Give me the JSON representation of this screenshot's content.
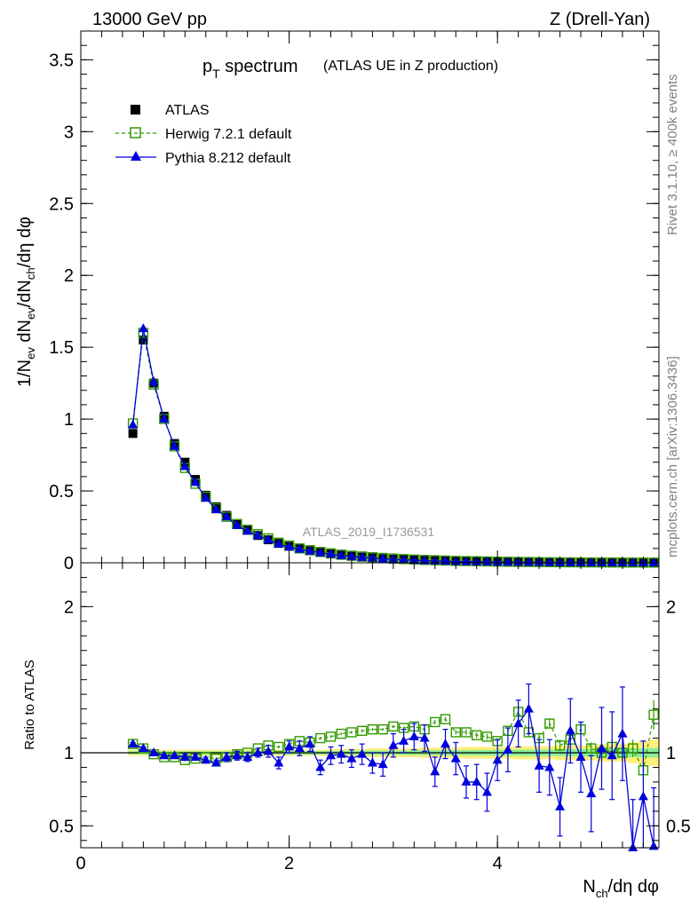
{
  "header": {
    "left": "13000 GeV pp",
    "right": "Z (Drell-Yan)"
  },
  "side_labels": {
    "rivet": "Rivet 3.1.10, ≥ 400k events",
    "mcplots": "mcplots.cern.ch [arXiv:1306.3436]"
  },
  "colors": {
    "atlas": "#000000",
    "herwig": "#339900",
    "pythia": "#0000dd",
    "band_yellow": "#ffee77",
    "band_green": "#88ee99"
  },
  "chart_data": [
    {
      "type": "scatter",
      "title_main": "p",
      "title_sub": "T",
      "title_rest": " spectrum",
      "title_small": "(ATLAS UE in Z production)",
      "ylabel": "1/N_ev dN_ev/dN_ch/dη dφ",
      "ylabel_parts": [
        "1/N",
        "ev",
        " dN",
        "ev",
        "/dN",
        "ch",
        "/dη dφ"
      ],
      "xlim": [
        0,
        5.55
      ],
      "ylim": [
        0,
        3.7
      ],
      "xticks": [
        "0",
        "2",
        "4"
      ],
      "xtick_values": [
        0,
        2,
        4
      ],
      "yticks": [
        "0",
        "0.5",
        "1",
        "1.5",
        "2",
        "2.5",
        "3",
        "3.5"
      ],
      "ytick_values": [
        0,
        0.5,
        1,
        1.5,
        2,
        2.5,
        3,
        3.5
      ],
      "watermark": "ATLAS_2019_I1736531",
      "legend": [
        "ATLAS",
        "Herwig 7.2.1 default",
        "Pythia 8.212 default"
      ],
      "x": [
        0.5,
        0.6,
        0.7,
        0.8,
        0.9,
        1.0,
        1.1,
        1.2,
        1.3,
        1.4,
        1.5,
        1.6,
        1.7,
        1.8,
        1.9,
        2.0,
        2.1,
        2.2,
        2.3,
        2.4,
        2.5,
        2.6,
        2.7,
        2.8,
        2.9,
        3.0,
        3.1,
        3.2,
        3.3,
        3.4,
        3.5,
        3.6,
        3.7,
        3.8,
        3.9,
        4.0,
        4.1,
        4.2,
        4.3,
        4.4,
        4.5,
        4.6,
        4.7,
        4.8,
        4.9,
        5.0,
        5.1,
        5.2,
        5.3,
        5.4,
        5.5
      ],
      "series": [
        {
          "name": "ATLAS",
          "values": [
            0.9,
            1.55,
            1.25,
            1.02,
            0.83,
            0.7,
            0.58,
            0.47,
            0.39,
            0.33,
            0.27,
            0.23,
            0.19,
            0.16,
            0.135,
            0.115,
            0.097,
            0.083,
            0.071,
            0.061,
            0.052,
            0.045,
            0.039,
            0.034,
            0.029,
            0.025,
            0.022,
            0.019,
            0.017,
            0.015,
            0.013,
            0.011,
            0.01,
            0.009,
            0.008,
            0.007,
            0.006,
            0.005,
            0.0045,
            0.004,
            0.0035,
            0.003,
            0.0027,
            0.0024,
            0.0021,
            0.0019,
            0.0017,
            0.0015,
            0.0013,
            0.0012,
            0.0011
          ]
        },
        {
          "name": "Herwig 7.2.1 default",
          "values": [
            0.97,
            1.6,
            1.24,
            1.0,
            0.81,
            0.66,
            0.55,
            0.46,
            0.38,
            0.32,
            0.27,
            0.23,
            0.2,
            0.17,
            0.14,
            0.12,
            0.1,
            0.088,
            0.076,
            0.066,
            0.057,
            0.05,
            0.044,
            0.039,
            0.034,
            0.03,
            0.026,
            0.023,
            0.02,
            0.018,
            0.016,
            0.013,
            0.012,
            0.011,
            0.0095,
            0.0083,
            0.0072,
            0.0063,
            0.0055,
            0.0048,
            0.0042,
            0.0036,
            0.0031,
            0.0027,
            0.0023,
            0.002,
            0.0018,
            0.0016,
            0.0014,
            0.0012,
            0.0011
          ]
        },
        {
          "name": "Pythia 8.212 default",
          "values": [
            0.96,
            1.63,
            1.26,
            1.0,
            0.81,
            0.67,
            0.56,
            0.45,
            0.37,
            0.32,
            0.26,
            0.22,
            0.19,
            0.16,
            0.13,
            0.11,
            0.095,
            0.082,
            0.07,
            0.06,
            0.051,
            0.044,
            0.038,
            0.033,
            0.028,
            0.024,
            0.021,
            0.018,
            0.015,
            0.013,
            0.011,
            0.009,
            0.008,
            0.007,
            0.006,
            0.005,
            0.0045,
            0.004,
            0.0035,
            0.003,
            0.0025,
            0.0022,
            0.002,
            0.0018,
            0.0016,
            0.0014,
            0.0012,
            0.0011,
            0.001,
            0.0009,
            0.0008
          ]
        }
      ]
    },
    {
      "type": "scatter",
      "ylabel": "Ratio to ATLAS",
      "xlabel_parts": [
        "N",
        "ch",
        "/dη dφ"
      ],
      "xlim": [
        0,
        5.55
      ],
      "ylim": [
        0.35,
        2.3
      ],
      "xticks": [
        "0",
        "2",
        "4"
      ],
      "xtick_values": [
        0,
        2,
        4
      ],
      "yticks": [
        "0.5",
        "1",
        "2"
      ],
      "ytick_values": [
        0.5,
        1,
        2
      ],
      "x": [
        0.5,
        0.6,
        0.7,
        0.8,
        0.9,
        1.0,
        1.1,
        1.2,
        1.3,
        1.4,
        1.5,
        1.6,
        1.7,
        1.8,
        1.9,
        2.0,
        2.1,
        2.2,
        2.3,
        2.4,
        2.5,
        2.6,
        2.7,
        2.8,
        2.9,
        3.0,
        3.1,
        3.2,
        3.3,
        3.4,
        3.5,
        3.6,
        3.7,
        3.8,
        3.9,
        4.0,
        4.1,
        4.2,
        4.3,
        4.4,
        4.5,
        4.6,
        4.7,
        4.8,
        4.9,
        5.0,
        5.1,
        5.2,
        5.3,
        5.4,
        5.5
      ],
      "band_yellow_halfwidth": [
        0.02,
        0.02,
        0.02,
        0.02,
        0.02,
        0.02,
        0.02,
        0.02,
        0.02,
        0.02,
        0.02,
        0.02,
        0.02,
        0.02,
        0.02,
        0.02,
        0.02,
        0.02,
        0.02,
        0.025,
        0.025,
        0.025,
        0.025,
        0.03,
        0.03,
        0.03,
        0.03,
        0.03,
        0.035,
        0.035,
        0.035,
        0.035,
        0.04,
        0.04,
        0.04,
        0.04,
        0.04,
        0.045,
        0.045,
        0.045,
        0.045,
        0.05,
        0.05,
        0.05,
        0.05,
        0.06,
        0.06,
        0.06,
        0.07,
        0.08,
        0.09
      ],
      "band_green_halfwidth": [
        0.01,
        0.01,
        0.01,
        0.01,
        0.01,
        0.01,
        0.01,
        0.01,
        0.01,
        0.01,
        0.01,
        0.01,
        0.01,
        0.01,
        0.01,
        0.012,
        0.012,
        0.012,
        0.012,
        0.013,
        0.013,
        0.013,
        0.014,
        0.014,
        0.015,
        0.015,
        0.015,
        0.016,
        0.016,
        0.017,
        0.017,
        0.018,
        0.018,
        0.019,
        0.019,
        0.02,
        0.02,
        0.021,
        0.021,
        0.022,
        0.022,
        0.023,
        0.024,
        0.025,
        0.026,
        0.027,
        0.028,
        0.029,
        0.03,
        0.031,
        0.032
      ],
      "series": [
        {
          "name": "Herwig 7.2.1 default",
          "values": [
            1.06,
            1.03,
            0.99,
            0.97,
            0.97,
            0.95,
            0.96,
            0.97,
            0.96,
            0.97,
            0.99,
            1.0,
            1.03,
            1.05,
            1.04,
            1.06,
            1.08,
            1.07,
            1.1,
            1.11,
            1.13,
            1.14,
            1.15,
            1.16,
            1.16,
            1.18,
            1.17,
            1.18,
            1.16,
            1.21,
            1.23,
            1.14,
            1.14,
            1.12,
            1.11,
            1.08,
            1.15,
            1.28,
            1.14,
            1.1,
            1.2,
            1.05,
            1.09,
            1.16,
            1.03,
            1.0,
            1.04,
            1.0,
            1.03,
            0.88,
            1.26
          ],
          "errors": [
            0.01,
            0.01,
            0.01,
            0.01,
            0.01,
            0.01,
            0.01,
            0.01,
            0.01,
            0.01,
            0.01,
            0.01,
            0.01,
            0.01,
            0.01,
            0.01,
            0.01,
            0.01,
            0.01,
            0.01,
            0.01,
            0.01,
            0.01,
            0.01,
            0.01,
            0.01,
            0.01,
            0.01,
            0.015,
            0.015,
            0.015,
            0.015,
            0.02,
            0.02,
            0.02,
            0.02,
            0.02,
            0.03,
            0.03,
            0.03,
            0.03,
            0.04,
            0.04,
            0.04,
            0.04,
            0.05,
            0.05,
            0.05,
            0.06,
            0.08,
            0.1
          ]
        },
        {
          "name": "Pythia 8.212 default",
          "values": [
            1.06,
            1.03,
            1.0,
            0.98,
            0.98,
            0.97,
            0.97,
            0.95,
            0.93,
            0.97,
            0.98,
            0.97,
            1.0,
            1.01,
            0.93,
            1.04,
            1.03,
            1.06,
            0.9,
            0.98,
            0.99,
            0.96,
            0.99,
            0.93,
            0.92,
            1.05,
            1.08,
            1.11,
            1.1,
            0.87,
            1.06,
            0.96,
            0.8,
            0.8,
            0.73,
            0.95,
            1.02,
            1.2,
            1.3,
            0.91,
            0.9,
            0.63,
            1.15,
            0.97,
            0.72,
            1.03,
            0.98,
            1.13,
            0.33,
            0.7,
            0.36
          ],
          "errors": [
            0.01,
            0.01,
            0.01,
            0.01,
            0.01,
            0.02,
            0.02,
            0.02,
            0.02,
            0.03,
            0.03,
            0.03,
            0.03,
            0.04,
            0.04,
            0.04,
            0.05,
            0.05,
            0.05,
            0.06,
            0.06,
            0.06,
            0.07,
            0.07,
            0.08,
            0.08,
            0.08,
            0.09,
            0.09,
            0.1,
            0.1,
            0.11,
            0.11,
            0.12,
            0.13,
            0.14,
            0.15,
            0.16,
            0.17,
            0.18,
            0.19,
            0.2,
            0.22,
            0.24,
            0.26,
            0.28,
            0.3,
            0.32,
            0.35,
            0.38,
            0.4
          ]
        }
      ]
    }
  ]
}
